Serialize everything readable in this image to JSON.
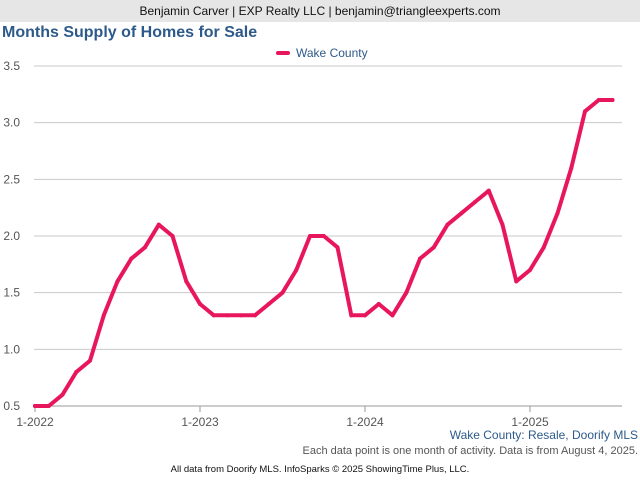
{
  "header": {
    "text": "Benjamin Carver | EXP Realty LLC | benjamin@triangleexperts.com"
  },
  "colors": {
    "series": "#e8175d",
    "title": "#2d5a8a",
    "grid": "#c8c8c8",
    "header_bg": "#e6e6e6"
  },
  "chart_data": {
    "type": "line",
    "title": "Months Supply of Homes for Sale",
    "xlabel": "",
    "ylabel": "",
    "ylim": [
      0.5,
      3.5
    ],
    "yticks": [
      "0.5",
      "1.0",
      "1.5",
      "2.0",
      "2.5",
      "3.0",
      "3.5"
    ],
    "xticks": [
      "1-2022",
      "1-2023",
      "1-2024",
      "1-2025"
    ],
    "grid": true,
    "legend": "top-center",
    "x": [
      "2022-01",
      "2022-02",
      "2022-03",
      "2022-04",
      "2022-05",
      "2022-06",
      "2022-07",
      "2022-08",
      "2022-09",
      "2022-10",
      "2022-11",
      "2022-12",
      "2023-01",
      "2023-02",
      "2023-03",
      "2023-04",
      "2023-05",
      "2023-06",
      "2023-07",
      "2023-08",
      "2023-09",
      "2023-10",
      "2023-11",
      "2023-12",
      "2024-01",
      "2024-02",
      "2024-03",
      "2024-04",
      "2024-05",
      "2024-06",
      "2024-07",
      "2024-08",
      "2024-09",
      "2024-10",
      "2024-11",
      "2024-12",
      "2025-01",
      "2025-02",
      "2025-03",
      "2025-04",
      "2025-05",
      "2025-06",
      "2025-07"
    ],
    "series": [
      {
        "name": "Wake County",
        "values": [
          0.5,
          0.5,
          0.6,
          0.8,
          0.9,
          1.3,
          1.6,
          1.8,
          1.9,
          2.1,
          2.0,
          1.6,
          1.4,
          1.3,
          1.3,
          1.3,
          1.3,
          1.4,
          1.5,
          1.7,
          2.0,
          2.0,
          1.9,
          1.3,
          1.3,
          1.4,
          1.3,
          1.5,
          1.8,
          1.9,
          2.1,
          2.2,
          2.3,
          2.4,
          2.1,
          1.6,
          1.7,
          1.9,
          2.2,
          2.6,
          3.1,
          3.2,
          3.2
        ]
      }
    ]
  },
  "notes": {
    "source": "Wake County: Resale, Doorify MLS",
    "activity": "Each data point is one month of activity. Data is from August 4, 2025.",
    "footer": "All data from Doorify MLS. InfoSparks © 2025 ShowingTime Plus, LLC."
  }
}
